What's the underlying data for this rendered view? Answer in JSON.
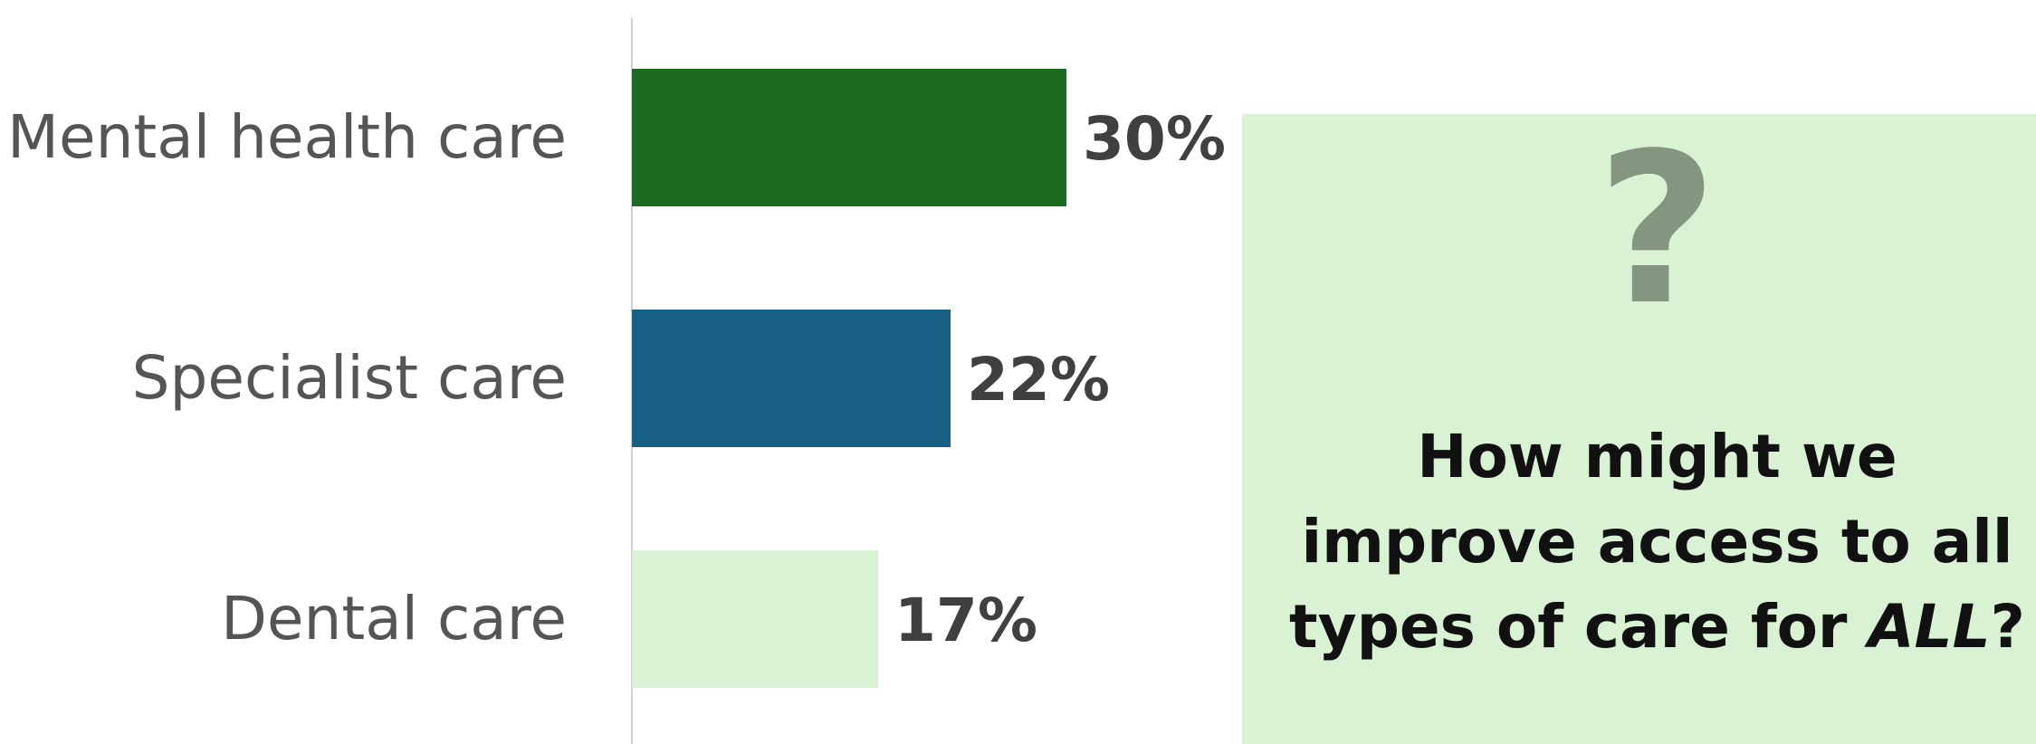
{
  "chart_data": {
    "type": "bar",
    "orientation": "horizontal",
    "categories": [
      "Mental health care",
      "Specialist care",
      "Dental care"
    ],
    "values": [
      30,
      22,
      17
    ],
    "value_labels": [
      "30%",
      "22%",
      "17%"
    ],
    "colors": [
      "#1b6b23",
      "#175f83",
      "#d9f2d4"
    ],
    "axis_color": "#d0d0d0",
    "grid": false,
    "legend": "none"
  },
  "callout": {
    "background": "#d9f2d4",
    "icon": "question-mark-icon",
    "icon_glyph": "?",
    "icon_color": "#859680",
    "text_main": "How might we improve access to all types of care for ",
    "text_emphasis": "ALL",
    "text_end": "?"
  }
}
